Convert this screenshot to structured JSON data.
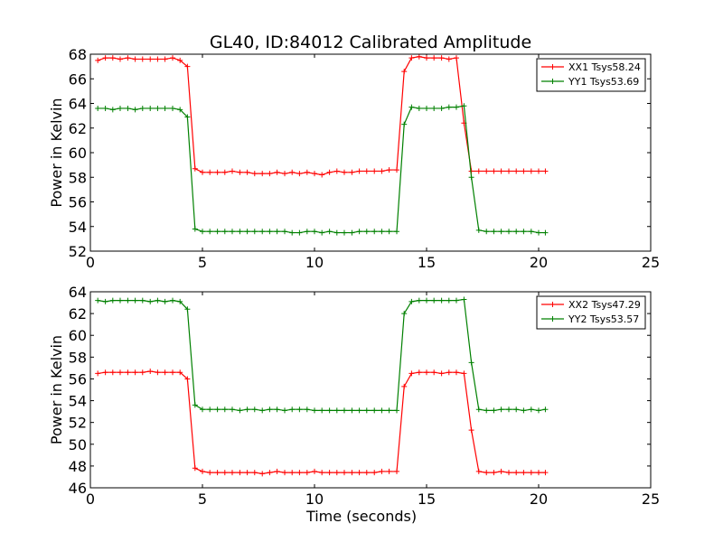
{
  "title": "GL40, ID:84012 Calibrated Amplitude",
  "colors": {
    "red": "#ff0000",
    "green": "#008000",
    "axis": "#000000"
  },
  "chart_data": [
    {
      "type": "line",
      "ylabel": "Power in Kelvin",
      "xlabel": "",
      "xlim": [
        0,
        25
      ],
      "ylim": [
        52,
        68
      ],
      "xticks": [
        "0",
        "5",
        "10",
        "15",
        "20",
        "25"
      ],
      "yticks": [
        "52",
        "54",
        "56",
        "58",
        "60",
        "62",
        "64",
        "66",
        "68"
      ],
      "legend_position": "top-right",
      "series": [
        {
          "name": "XX1 Tsys58.24",
          "color": "#ff0000",
          "x": [
            0.33,
            0.67,
            1.0,
            1.33,
            1.67,
            2.0,
            2.33,
            2.67,
            3.0,
            3.33,
            3.67,
            4.0,
            4.33,
            4.67,
            5.0,
            5.33,
            5.67,
            6.0,
            6.33,
            6.67,
            7.0,
            7.33,
            7.67,
            8.0,
            8.33,
            8.67,
            9.0,
            9.33,
            9.67,
            10.0,
            10.33,
            10.67,
            11.0,
            11.33,
            11.67,
            12.0,
            12.33,
            12.67,
            13.0,
            13.33,
            13.67,
            14.0,
            14.33,
            14.67,
            15.0,
            15.33,
            15.67,
            16.0,
            16.33,
            16.67,
            17.0,
            17.33,
            17.67,
            18.0,
            18.33,
            18.67,
            19.0,
            19.33,
            19.67,
            20.0,
            20.3
          ],
          "y": [
            67.5,
            67.7,
            67.7,
            67.6,
            67.7,
            67.6,
            67.6,
            67.6,
            67.6,
            67.6,
            67.7,
            67.5,
            67.0,
            58.7,
            58.4,
            58.4,
            58.4,
            58.4,
            58.5,
            58.4,
            58.4,
            58.3,
            58.3,
            58.3,
            58.4,
            58.3,
            58.4,
            58.3,
            58.4,
            58.3,
            58.2,
            58.4,
            58.5,
            58.4,
            58.4,
            58.5,
            58.5,
            58.5,
            58.5,
            58.6,
            58.6,
            66.6,
            67.7,
            67.8,
            67.7,
            67.7,
            67.7,
            67.6,
            67.7,
            62.4,
            58.5,
            58.5,
            58.5,
            58.5,
            58.5,
            58.5,
            58.5,
            58.5,
            58.5,
            58.5,
            58.5
          ]
        },
        {
          "name": "YY1 Tsys53.69",
          "color": "#008000",
          "x": [
            0.33,
            0.67,
            1.0,
            1.33,
            1.67,
            2.0,
            2.33,
            2.67,
            3.0,
            3.33,
            3.67,
            4.0,
            4.33,
            4.67,
            5.0,
            5.33,
            5.67,
            6.0,
            6.33,
            6.67,
            7.0,
            7.33,
            7.67,
            8.0,
            8.33,
            8.67,
            9.0,
            9.33,
            9.67,
            10.0,
            10.33,
            10.67,
            11.0,
            11.33,
            11.67,
            12.0,
            12.33,
            12.67,
            13.0,
            13.33,
            13.67,
            14.0,
            14.33,
            14.67,
            15.0,
            15.33,
            15.67,
            16.0,
            16.33,
            16.67,
            17.0,
            17.33,
            17.67,
            18.0,
            18.33,
            18.67,
            19.0,
            19.33,
            19.67,
            20.0,
            20.3
          ],
          "y": [
            63.6,
            63.6,
            63.5,
            63.6,
            63.6,
            63.5,
            63.6,
            63.6,
            63.6,
            63.6,
            63.6,
            63.5,
            62.9,
            53.8,
            53.6,
            53.6,
            53.6,
            53.6,
            53.6,
            53.6,
            53.6,
            53.6,
            53.6,
            53.6,
            53.6,
            53.6,
            53.5,
            53.5,
            53.6,
            53.6,
            53.5,
            53.6,
            53.5,
            53.5,
            53.5,
            53.6,
            53.6,
            53.6,
            53.6,
            53.6,
            53.6,
            62.3,
            63.7,
            63.6,
            63.6,
            63.6,
            63.6,
            63.7,
            63.7,
            63.8,
            58.0,
            53.7,
            53.6,
            53.6,
            53.6,
            53.6,
            53.6,
            53.6,
            53.6,
            53.5,
            53.5
          ]
        }
      ]
    },
    {
      "type": "line",
      "ylabel": "Power in Kelvin",
      "xlabel": "Time (seconds)",
      "xlim": [
        0,
        25
      ],
      "ylim": [
        46,
        64
      ],
      "xticks": [
        "0",
        "5",
        "10",
        "15",
        "20",
        "25"
      ],
      "yticks": [
        "46",
        "48",
        "50",
        "52",
        "54",
        "56",
        "58",
        "60",
        "62",
        "64"
      ],
      "legend_position": "top-right",
      "series": [
        {
          "name": "XX2 Tsys47.29",
          "color": "#ff0000",
          "x": [
            0.33,
            0.67,
            1.0,
            1.33,
            1.67,
            2.0,
            2.33,
            2.67,
            3.0,
            3.33,
            3.67,
            4.0,
            4.33,
            4.67,
            5.0,
            5.33,
            5.67,
            6.0,
            6.33,
            6.67,
            7.0,
            7.33,
            7.67,
            8.0,
            8.33,
            8.67,
            9.0,
            9.33,
            9.67,
            10.0,
            10.33,
            10.67,
            11.0,
            11.33,
            11.67,
            12.0,
            12.33,
            12.67,
            13.0,
            13.33,
            13.67,
            14.0,
            14.33,
            14.67,
            15.0,
            15.33,
            15.67,
            16.0,
            16.33,
            16.67,
            17.0,
            17.33,
            17.67,
            18.0,
            18.33,
            18.67,
            19.0,
            19.33,
            19.67,
            20.0,
            20.3
          ],
          "y": [
            56.5,
            56.6,
            56.6,
            56.6,
            56.6,
            56.6,
            56.6,
            56.7,
            56.6,
            56.6,
            56.6,
            56.6,
            56.0,
            47.8,
            47.5,
            47.4,
            47.4,
            47.4,
            47.4,
            47.4,
            47.4,
            47.4,
            47.3,
            47.4,
            47.5,
            47.4,
            47.4,
            47.4,
            47.4,
            47.5,
            47.4,
            47.4,
            47.4,
            47.4,
            47.4,
            47.4,
            47.4,
            47.4,
            47.5,
            47.5,
            47.5,
            55.3,
            56.5,
            56.6,
            56.6,
            56.6,
            56.5,
            56.6,
            56.6,
            56.5,
            51.3,
            47.5,
            47.4,
            47.4,
            47.5,
            47.4,
            47.4,
            47.4,
            47.4,
            47.4,
            47.4
          ]
        },
        {
          "name": "YY2 Tsys53.57",
          "color": "#008000",
          "x": [
            0.33,
            0.67,
            1.0,
            1.33,
            1.67,
            2.0,
            2.33,
            2.67,
            3.0,
            3.33,
            3.67,
            4.0,
            4.33,
            4.67,
            5.0,
            5.33,
            5.67,
            6.0,
            6.33,
            6.67,
            7.0,
            7.33,
            7.67,
            8.0,
            8.33,
            8.67,
            9.0,
            9.33,
            9.67,
            10.0,
            10.33,
            10.67,
            11.0,
            11.33,
            11.67,
            12.0,
            12.33,
            12.67,
            13.0,
            13.33,
            13.67,
            14.0,
            14.33,
            14.67,
            15.0,
            15.33,
            15.67,
            16.0,
            16.33,
            16.67,
            17.0,
            17.33,
            17.67,
            18.0,
            18.33,
            18.67,
            19.0,
            19.33,
            19.67,
            20.0,
            20.3
          ],
          "y": [
            63.2,
            63.1,
            63.2,
            63.2,
            63.2,
            63.2,
            63.2,
            63.1,
            63.2,
            63.1,
            63.2,
            63.1,
            62.4,
            53.6,
            53.2,
            53.2,
            53.2,
            53.2,
            53.2,
            53.1,
            53.2,
            53.2,
            53.1,
            53.2,
            53.2,
            53.1,
            53.2,
            53.2,
            53.2,
            53.1,
            53.1,
            53.1,
            53.1,
            53.1,
            53.1,
            53.1,
            53.1,
            53.1,
            53.1,
            53.1,
            53.1,
            62.0,
            63.1,
            63.2,
            63.2,
            63.2,
            63.2,
            63.2,
            63.2,
            63.3,
            57.5,
            53.2,
            53.1,
            53.1,
            53.2,
            53.2,
            53.2,
            53.1,
            53.2,
            53.1,
            53.2
          ]
        }
      ]
    }
  ]
}
